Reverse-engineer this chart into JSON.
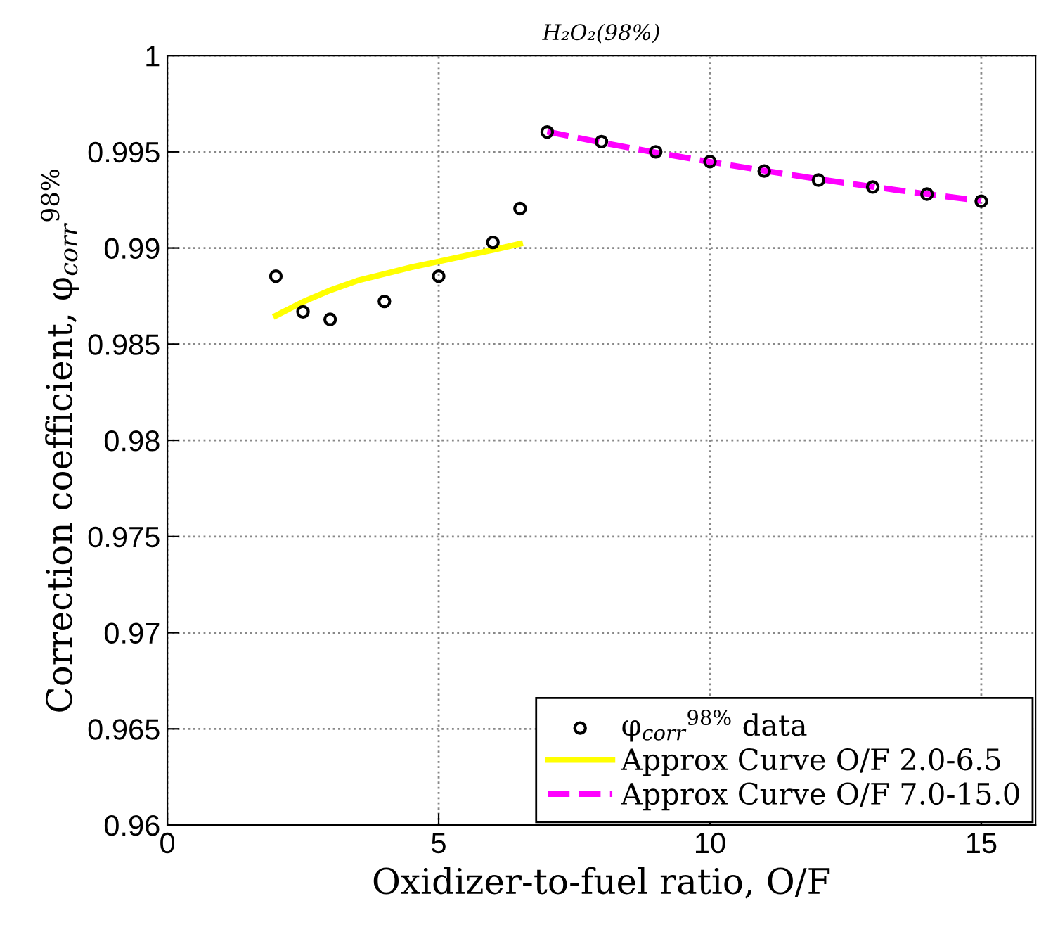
{
  "chart_data": {
    "type": "scatter",
    "title": "H₂O₂(98%)",
    "xlabel": "Oxidizer-to-fuel ratio, O/F",
    "ylabel": "Correction coefficient, φ$_{corr}$$^{98%}$",
    "xlim": [
      0,
      16
    ],
    "xticks": [
      0,
      5,
      10,
      15
    ],
    "ylim": [
      0.96,
      1
    ],
    "yticks": [
      0.96,
      0.965,
      0.97,
      0.975,
      0.98,
      0.985,
      0.99,
      0.995,
      1
    ],
    "grid": true,
    "legend": "bottom right",
    "series": [
      {
        "name": "φ$_{corr}$$^{98%}$ data",
        "marker": "circle",
        "color": "#000000",
        "x": [
          2,
          2.5,
          3,
          4,
          5,
          6,
          6.5,
          7,
          8,
          9,
          10,
          11,
          12,
          13,
          14,
          15
        ],
        "values": [
          0.98853,
          0.98668,
          0.98629,
          0.98722,
          0.98853,
          0.99029,
          0.99205,
          0.99603,
          0.99553,
          0.995,
          0.99449,
          0.994,
          0.99353,
          0.99317,
          0.9928,
          0.99243
        ]
      },
      {
        "name": "Approx Curve O/F 2.0-6.5",
        "type": "line",
        "line_style": "solid",
        "color": "#ffff00",
        "x": [
          2,
          2.5,
          3,
          3.5,
          4,
          4.5,
          5,
          5.5,
          6,
          6.5
        ],
        "values": [
          0.98648,
          0.9872,
          0.9878,
          0.9883,
          0.98865,
          0.989,
          0.9893,
          0.9896,
          0.9899,
          0.99022
        ]
      },
      {
        "name": "Approx Curve O/F 7.0-15.0",
        "type": "line",
        "line_style": "dashed",
        "color": "#ff00ff",
        "x": [
          7,
          8,
          9,
          10,
          11,
          12,
          13,
          14,
          15
        ],
        "values": [
          0.99605,
          0.99548,
          0.99496,
          0.99448,
          0.99402,
          0.99358,
          0.99318,
          0.9928,
          0.99245
        ]
      }
    ]
  }
}
